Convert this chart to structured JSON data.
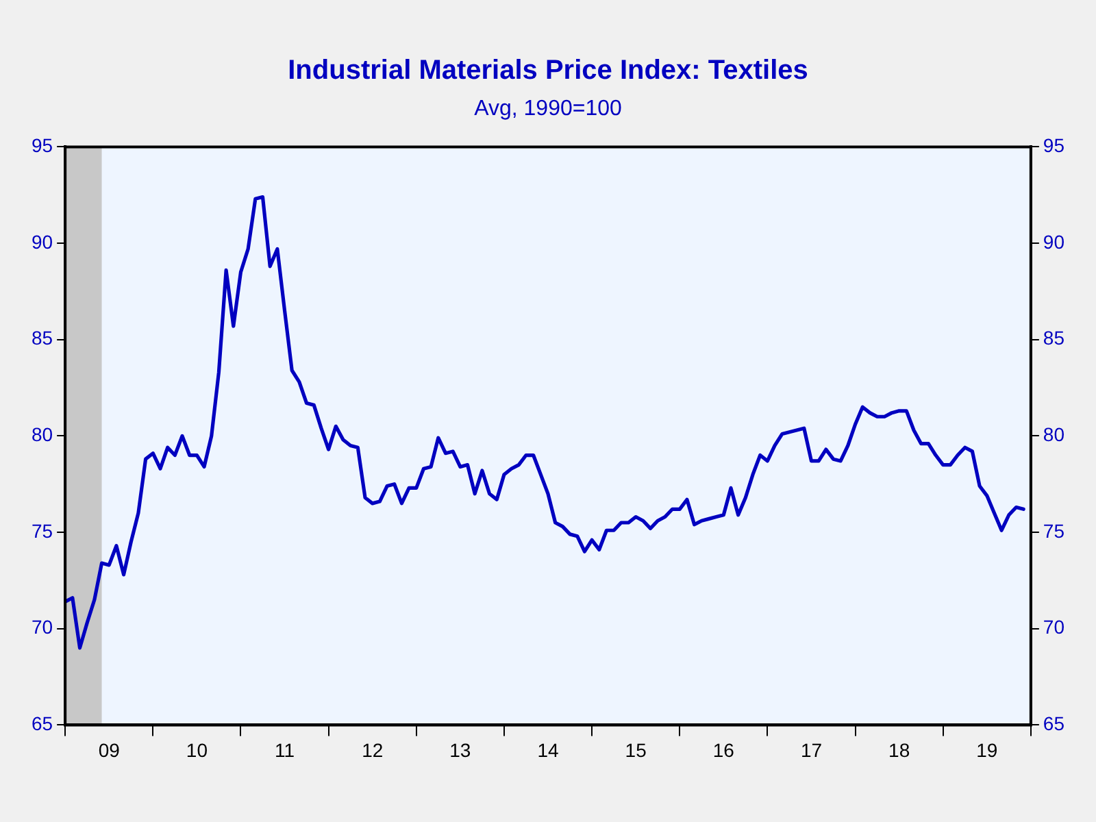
{
  "chart_data": {
    "type": "line",
    "title": "Industrial Materials Price Index: Textiles",
    "subtitle": "Avg, 1990=100",
    "x": [
      "2009-01",
      "2009-02",
      "2009-03",
      "2009-04",
      "2009-05",
      "2009-06",
      "2009-07",
      "2009-08",
      "2009-09",
      "2009-10",
      "2009-11",
      "2009-12",
      "2010-01",
      "2010-02",
      "2010-03",
      "2010-04",
      "2010-05",
      "2010-06",
      "2010-07",
      "2010-08",
      "2010-09",
      "2010-10",
      "2010-11",
      "2010-12",
      "2011-01",
      "2011-02",
      "2011-03",
      "2011-04",
      "2011-05",
      "2011-06",
      "2011-07",
      "2011-08",
      "2011-09",
      "2011-10",
      "2011-11",
      "2011-12",
      "2012-01",
      "2012-02",
      "2012-03",
      "2012-04",
      "2012-05",
      "2012-06",
      "2012-07",
      "2012-08",
      "2012-09",
      "2012-10",
      "2012-11",
      "2012-12",
      "2013-01",
      "2013-02",
      "2013-03",
      "2013-04",
      "2013-05",
      "2013-06",
      "2013-07",
      "2013-08",
      "2013-09",
      "2013-10",
      "2013-11",
      "2013-12",
      "2014-01",
      "2014-02",
      "2014-03",
      "2014-04",
      "2014-05",
      "2014-06",
      "2014-07",
      "2014-08",
      "2014-09",
      "2014-10",
      "2014-11",
      "2014-12",
      "2015-01",
      "2015-02",
      "2015-03",
      "2015-04",
      "2015-05",
      "2015-06",
      "2015-07",
      "2015-08",
      "2015-09",
      "2015-10",
      "2015-11",
      "2015-12",
      "2016-01",
      "2016-02",
      "2016-03",
      "2016-04",
      "2016-05",
      "2016-06",
      "2016-07",
      "2016-08",
      "2016-09",
      "2016-10",
      "2016-11",
      "2016-12",
      "2017-01",
      "2017-02",
      "2017-03",
      "2017-04",
      "2017-05",
      "2017-06",
      "2017-07",
      "2017-08",
      "2017-09",
      "2017-10",
      "2017-11",
      "2017-12",
      "2018-01",
      "2018-02",
      "2018-03",
      "2018-04",
      "2018-05",
      "2018-06",
      "2018-07",
      "2018-08",
      "2018-09",
      "2018-10",
      "2018-11",
      "2018-12",
      "2019-01",
      "2019-02",
      "2019-03",
      "2019-04",
      "2019-05",
      "2019-06",
      "2019-07",
      "2019-08",
      "2019-09",
      "2019-10",
      "2019-11",
      "2019-12"
    ],
    "series": [
      {
        "color": "#0000c0",
        "values": [
          71.4,
          71.6,
          69.0,
          70.3,
          71.5,
          73.4,
          73.3,
          74.3,
          72.8,
          74.5,
          76.0,
          78.8,
          79.1,
          78.3,
          79.4,
          79.0,
          80.0,
          79.0,
          79.0,
          78.4,
          80.0,
          83.3,
          88.6,
          85.7,
          88.5,
          89.7,
          92.3,
          92.4,
          88.8,
          89.7,
          86.5,
          83.4,
          82.8,
          81.7,
          81.6,
          80.4,
          79.3,
          80.5,
          79.8,
          79.5,
          79.4,
          76.8,
          76.5,
          76.6,
          77.4,
          77.5,
          76.5,
          77.3,
          77.3,
          78.3,
          78.4,
          79.9,
          79.1,
          79.2,
          78.4,
          78.5,
          77.0,
          78.2,
          77.0,
          76.7,
          78.0,
          78.3,
          78.5,
          79.0,
          79.0,
          78.0,
          77.0,
          75.5,
          75.3,
          74.9,
          74.8,
          74.0,
          74.6,
          74.1,
          75.1,
          75.1,
          75.5,
          75.5,
          75.8,
          75.6,
          75.2,
          75.6,
          75.8,
          76.2,
          76.2,
          76.7,
          75.4,
          75.6,
          75.7,
          75.8,
          75.9,
          77.3,
          75.9,
          76.8,
          78.0,
          79.0,
          78.7,
          79.5,
          80.1,
          80.2,
          80.3,
          80.4,
          78.7,
          78.7,
          79.3,
          78.8,
          78.7,
          79.5,
          80.6,
          81.5,
          81.2,
          81.0,
          81.0,
          81.2,
          81.3,
          81.3,
          80.3,
          79.6,
          79.6,
          79.0,
          78.5,
          78.5,
          79.0,
          79.4,
          79.2,
          77.4,
          76.9,
          76.0,
          75.1,
          75.9,
          76.3,
          76.2
        ]
      }
    ],
    "xlim": [
      "2009-01",
      "2020-01"
    ],
    "xticks": [
      {
        "value": "2009-01",
        "label": null
      },
      {
        "value": "2009-07",
        "label": "09"
      },
      {
        "value": "2010-01",
        "label": null
      },
      {
        "value": "2010-07",
        "label": "10"
      },
      {
        "value": "2011-01",
        "label": null
      },
      {
        "value": "2011-07",
        "label": "11"
      },
      {
        "value": "2012-01",
        "label": null
      },
      {
        "value": "2012-07",
        "label": "12"
      },
      {
        "value": "2013-01",
        "label": null
      },
      {
        "value": "2013-07",
        "label": "13"
      },
      {
        "value": "2014-01",
        "label": null
      },
      {
        "value": "2014-07",
        "label": "14"
      },
      {
        "value": "2015-01",
        "label": null
      },
      {
        "value": "2015-07",
        "label": "15"
      },
      {
        "value": "2016-01",
        "label": null
      },
      {
        "value": "2016-07",
        "label": "16"
      },
      {
        "value": "2017-01",
        "label": null
      },
      {
        "value": "2017-07",
        "label": "17"
      },
      {
        "value": "2018-01",
        "label": null
      },
      {
        "value": "2018-07",
        "label": "18"
      },
      {
        "value": "2019-01",
        "label": null
      },
      {
        "value": "2019-07",
        "label": "19"
      },
      {
        "value": "2020-01",
        "label": null
      }
    ],
    "ylim": [
      65,
      95
    ],
    "yticks": [
      65,
      70,
      75,
      80,
      85,
      90,
      95
    ],
    "y2lim": [
      65,
      95
    ],
    "y2ticks": [
      65,
      70,
      75,
      80,
      85,
      90,
      95
    ],
    "bands": [
      {
        "axis": "x",
        "from": "2009-01",
        "to": "2009-06",
        "color": "#c8c8c8"
      }
    ],
    "grid": false,
    "legend": false,
    "marker": "none",
    "line_style": "solid"
  }
}
